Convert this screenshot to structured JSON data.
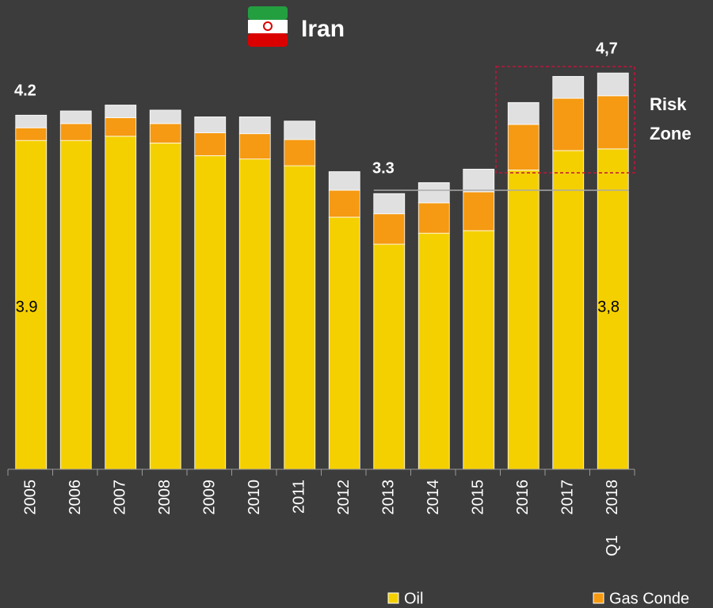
{
  "chart_data": {
    "type": "stacked_bar",
    "title": "Iran",
    "categories": [
      "2005",
      "2006",
      "2007",
      "2008",
      "2009",
      "2010",
      "2011",
      "2012",
      "2013",
      "2014",
      "2015",
      "2016",
      "2017",
      "2018"
    ],
    "period_note": "Q1",
    "series": [
      {
        "name": "Oil",
        "color": "#f5d000",
        "values": [
          3.9,
          3.9,
          3.95,
          3.87,
          3.72,
          3.68,
          3.6,
          2.99,
          2.67,
          2.8,
          2.83,
          3.55,
          3.78,
          3.8
        ],
        "value_labels": [
          "3.9",
          null,
          null,
          null,
          null,
          null,
          null,
          null,
          null,
          null,
          null,
          null,
          null,
          "3,8"
        ]
      },
      {
        "name": "Gas Conde",
        "color": "#f59a12",
        "values": [
          0.15,
          0.2,
          0.22,
          0.23,
          0.27,
          0.3,
          0.31,
          0.32,
          0.36,
          0.36,
          0.46,
          0.54,
          0.62,
          0.63
        ]
      },
      {
        "color": "#e0e0e0",
        "values": [
          0.15,
          0.15,
          0.15,
          0.16,
          0.19,
          0.2,
          0.22,
          0.22,
          0.24,
          0.24,
          0.27,
          0.26,
          0.26,
          0.27
        ]
      }
    ],
    "annotations": [
      "4.2",
      "3.3",
      "4,7"
    ],
    "risk_zone": [
      "Risk",
      "Zone"
    ],
    "ylim": [
      0,
      5.5
    ]
  }
}
